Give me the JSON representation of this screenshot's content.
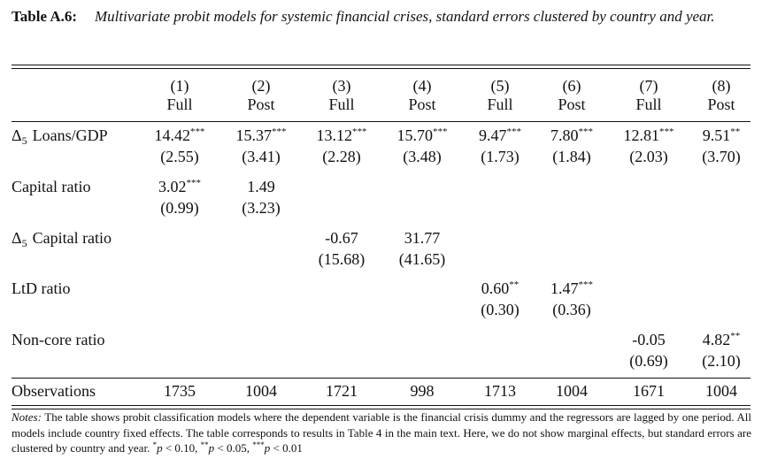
{
  "title": {
    "label": "Table A.6:",
    "text": "Multivariate probit models for systemic financial crises, standard errors clustered by country and year."
  },
  "columns": [
    {
      "number": "(1)",
      "sample": "Full"
    },
    {
      "number": "(2)",
      "sample": "Post"
    },
    {
      "number": "(3)",
      "sample": "Full"
    },
    {
      "number": "(4)",
      "sample": "Post"
    },
    {
      "number": "(5)",
      "sample": "Full"
    },
    {
      "number": "(6)",
      "sample": "Post"
    },
    {
      "number": "(7)",
      "sample": "Full"
    },
    {
      "number": "(8)",
      "sample": "Post"
    }
  ],
  "rows": [
    {
      "label": {
        "symbol": "Δ",
        "sub": "5",
        "text": "Loans/GDP"
      },
      "cells": [
        {
          "coef": "14.42",
          "stars": "***",
          "se": "(2.55)"
        },
        {
          "coef": "15.37",
          "stars": "***",
          "se": "(3.41)"
        },
        {
          "coef": "13.12",
          "stars": "***",
          "se": "(2.28)"
        },
        {
          "coef": "15.70",
          "stars": "***",
          "se": "(3.48)"
        },
        {
          "coef": "9.47",
          "stars": "***",
          "se": "(1.73)"
        },
        {
          "coef": "7.80",
          "stars": "***",
          "se": "(1.84)"
        },
        {
          "coef": "12.81",
          "stars": "***",
          "se": "(2.03)"
        },
        {
          "coef": "9.51",
          "stars": "**",
          "se": "(3.70)"
        }
      ]
    },
    {
      "label": {
        "text": "Capital ratio"
      },
      "cells": [
        {
          "coef": "3.02",
          "stars": "***",
          "se": "(0.99)"
        },
        {
          "coef": "1.49",
          "se": "(3.23)"
        },
        null,
        null,
        null,
        null,
        null,
        null
      ]
    },
    {
      "label": {
        "symbol": "Δ",
        "sub": "5",
        "text": "Capital ratio"
      },
      "cells": [
        null,
        null,
        {
          "coef": "-0.67",
          "se": "(15.68)"
        },
        {
          "coef": "31.77",
          "se": "(41.65)"
        },
        null,
        null,
        null,
        null
      ]
    },
    {
      "label": {
        "text": "LtD ratio"
      },
      "cells": [
        null,
        null,
        null,
        null,
        {
          "coef": "0.60",
          "stars": "**",
          "se": "(0.30)"
        },
        {
          "coef": "1.47",
          "stars": "***",
          "se": "(0.36)"
        },
        null,
        null
      ]
    },
    {
      "label": {
        "text": "Non-core ratio"
      },
      "cells": [
        null,
        null,
        null,
        null,
        null,
        null,
        {
          "coef": "-0.05",
          "se": "(0.69)"
        },
        {
          "coef": "4.82",
          "stars": "**",
          "se": "(2.10)"
        }
      ]
    }
  ],
  "observations": {
    "label": "Observations",
    "values": [
      "1735",
      "1004",
      "1721",
      "998",
      "1713",
      "1004",
      "1671",
      "1004"
    ]
  },
  "notes": {
    "label": "Notes:",
    "text": "The table shows probit classification models where the dependent variable is the financial crisis dummy and the regressors are lagged by one period. All models include country fixed effects. The table corresponds to results in Table 4 in the main text. Here, we do not show marginal effects, but standard errors are clustered by country and year.",
    "significance": [
      {
        "stars": "*",
        "var": "p",
        "text": "< 0.10,"
      },
      {
        "stars": "**",
        "var": "p",
        "text": "< 0.05,"
      },
      {
        "stars": "***",
        "var": "p",
        "text": "< 0.01"
      }
    ]
  }
}
